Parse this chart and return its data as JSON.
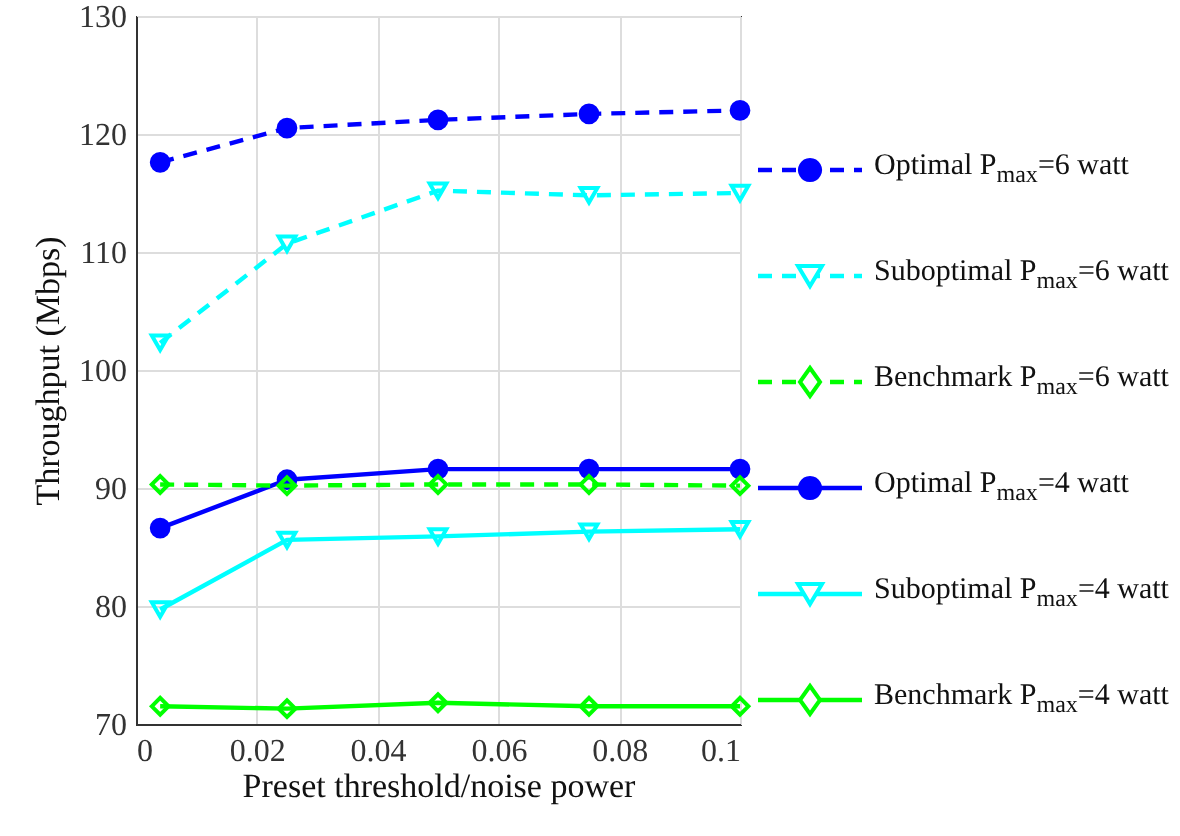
{
  "chart_data": {
    "type": "line",
    "xlabel": "Preset threshold/noise power",
    "ylabel": "Throughput (Mbps)",
    "x": [
      0.004,
      0.025,
      0.05,
      0.075,
      0.1
    ],
    "xlim": [
      0,
      0.1
    ],
    "xticks": [
      0,
      0.02,
      0.04,
      0.06,
      0.08,
      0.1
    ],
    "ylim": [
      70,
      130
    ],
    "yticks": [
      70,
      80,
      90,
      100,
      110,
      120,
      130
    ],
    "grid": true,
    "legend": "right",
    "series": [
      {
        "name": "Optimal P$_{max}$=6 watt",
        "color": "#0000ff",
        "marker": "circle",
        "line_style": "dashed",
        "values": [
          117.6,
          120.5,
          121.2,
          121.7,
          122.0
        ]
      },
      {
        "name": "Suboptimal P$_{max}$=6 watt",
        "color": "#00ffff",
        "marker": "triangle-down",
        "line_style": "dashed",
        "values": [
          102.3,
          110.7,
          115.2,
          114.8,
          115.0
        ]
      },
      {
        "name": "Benchmark P$_{max}$=6 watt",
        "color": "#00ff00",
        "marker": "diamond",
        "line_style": "dashed",
        "values": [
          90.3,
          90.2,
          90.3,
          90.3,
          90.2
        ]
      },
      {
        "name": "Optimal P$_{max}$=4 watt",
        "color": "#0000ff",
        "marker": "circle",
        "line_style": "solid",
        "values": [
          86.6,
          90.7,
          91.6,
          91.6,
          91.6
        ]
      },
      {
        "name": "Suboptimal P$_{max}$=4 watt",
        "color": "#00ffff",
        "marker": "triangle-down",
        "line_style": "solid",
        "values": [
          79.7,
          85.6,
          85.9,
          86.3,
          86.5
        ]
      },
      {
        "name": "Benchmark P$_{max}$=4 watt",
        "color": "#00ff00",
        "marker": "diamond",
        "line_style": "solid",
        "values": [
          71.5,
          71.3,
          71.8,
          71.5,
          71.5
        ]
      }
    ]
  }
}
